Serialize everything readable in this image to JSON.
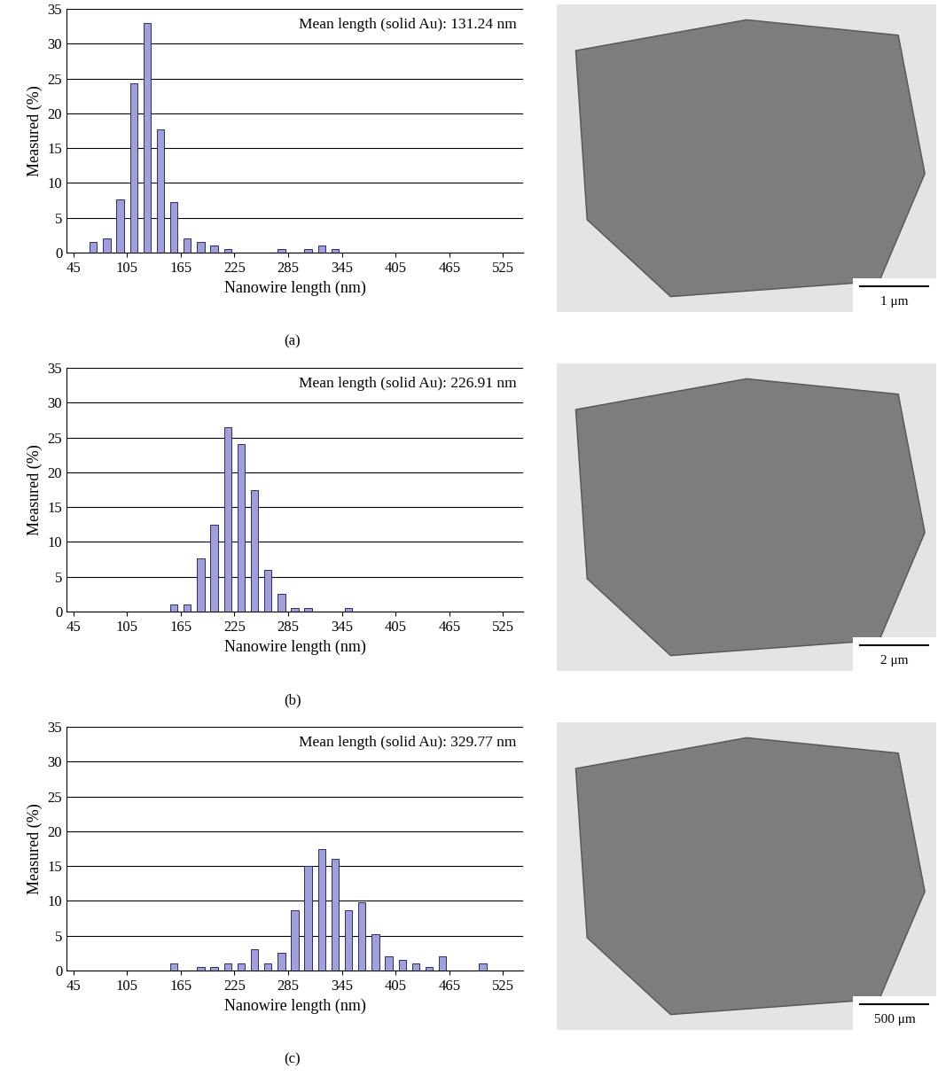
{
  "chart_data": [
    {
      "type": "histogram",
      "caption": "(a)",
      "annotation": "Mean length (solid Au): 131.24 nm",
      "x_label": "Nanowire length (nm)",
      "y_label": "Measured (%)",
      "bins": [
        60,
        75,
        90,
        105,
        120,
        135,
        150,
        165,
        180,
        195,
        210,
        225,
        240,
        255,
        270,
        285,
        300,
        315,
        330,
        345
      ],
      "counts": [
        1.5,
        2,
        7.7,
        24.3,
        33,
        17.7,
        7.2,
        2,
        1.5,
        1,
        0.5,
        0,
        0,
        0,
        0.5,
        0,
        0.5,
        1,
        0.5
      ],
      "color": "#a0a0d8",
      "xlim": [
        37.5,
        547.5
      ],
      "xticks": [
        45,
        105,
        165,
        225,
        285,
        345,
        405,
        465,
        525
      ],
      "ylim": [
        0,
        35
      ],
      "yticks": [
        0,
        5,
        10,
        15,
        20,
        25,
        30,
        35
      ],
      "grid": true,
      "image_scale_bar": "1 μm"
    },
    {
      "type": "histogram",
      "caption": "(b)",
      "annotation": "Mean length (solid Au): 226.91 nm",
      "x_label": "Nanowire length (nm)",
      "y_label": "Measured (%)",
      "bins": [
        150,
        165,
        180,
        195,
        210,
        225,
        240,
        255,
        270,
        285,
        300,
        315,
        330,
        345,
        360
      ],
      "counts": [
        1,
        1,
        7.6,
        12.5,
        26.5,
        24,
        17.5,
        6,
        2.5,
        0.5,
        0.5,
        0,
        0,
        0.5
      ],
      "color": "#a0a0d8",
      "xlim": [
        37.5,
        547.5
      ],
      "xticks": [
        45,
        105,
        165,
        225,
        285,
        345,
        405,
        465,
        525
      ],
      "ylim": [
        0,
        35
      ],
      "yticks": [
        0,
        5,
        10,
        15,
        20,
        25,
        30,
        35
      ],
      "grid": true,
      "image_scale_bar": "2 μm"
    },
    {
      "type": "histogram",
      "caption": "(c)",
      "annotation": "Mean length (solid Au): 329.77 nm",
      "x_label": "Nanowire length (nm)",
      "y_label": "Measured (%)",
      "bins": [
        150,
        165,
        180,
        195,
        210,
        225,
        240,
        255,
        270,
        285,
        300,
        315,
        330,
        345,
        360,
        375,
        390,
        405,
        420,
        435,
        450,
        465,
        480,
        495,
        510
      ],
      "counts": [
        1,
        0,
        0.5,
        0.5,
        1,
        1,
        3,
        1,
        2.5,
        8.7,
        15,
        17.5,
        16,
        8.7,
        9.8,
        5.2,
        2,
        1.5,
        1,
        0.5,
        2,
        0,
        0,
        1
      ],
      "color": "#a0a0d8",
      "xlim": [
        37.5,
        547.5
      ],
      "xticks": [
        45,
        105,
        165,
        225,
        285,
        345,
        405,
        465,
        525
      ],
      "ylim": [
        0,
        35
      ],
      "yticks": [
        0,
        5,
        10,
        15,
        20,
        25,
        30,
        35
      ],
      "grid": true,
      "image_scale_bar": "500 μm"
    }
  ]
}
